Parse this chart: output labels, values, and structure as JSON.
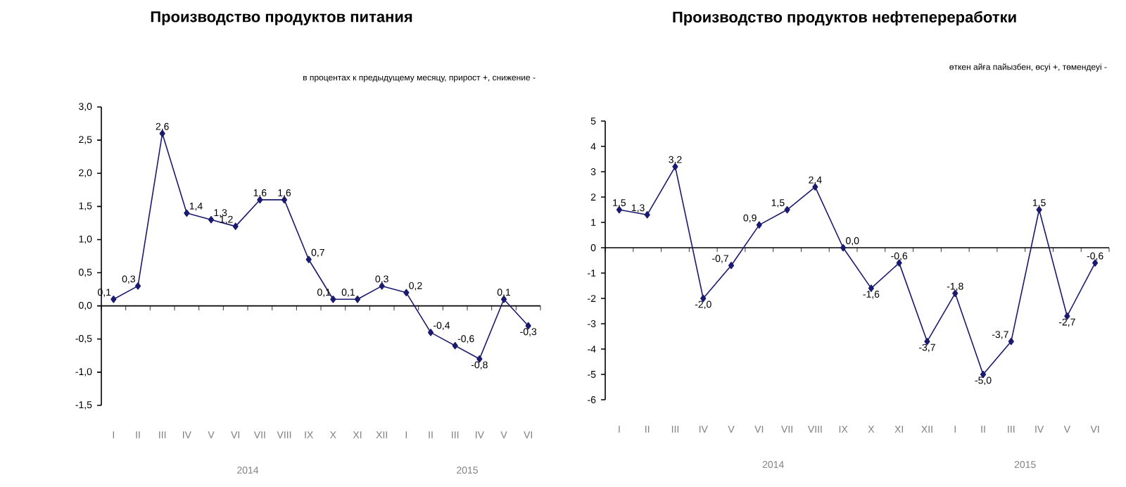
{
  "chart_data": [
    {
      "type": "line",
      "title": "Производство продуктов питания",
      "subtitle": "в процентах к предыдущему месяцу, прирост +, снижение -",
      "categories": [
        "I",
        "II",
        "III",
        "IV",
        "V",
        "VI",
        "VII",
        "VIII",
        "IX",
        "X",
        "XI",
        "XII",
        "I",
        "II",
        "III",
        "IV",
        "V",
        "VI"
      ],
      "series": [
        {
          "color": "#1a1a6e",
          "values": [
            0.1,
            0.3,
            2.6,
            1.4,
            1.3,
            1.2,
            1.6,
            1.6,
            0.7,
            0.1,
            0.1,
            0.3,
            0.2,
            -0.4,
            -0.6,
            -0.8,
            0.1,
            -0.3
          ],
          "value_labels": [
            "0,1",
            "0,3",
            "2,6",
            "1,4",
            "1,3",
            "1,2",
            "1,6",
            "1,6",
            "0,7",
            "0,1",
            "0,1",
            "0,3",
            "0,2",
            "-0,4",
            "-0,6",
            "-0,8",
            "0,1",
            "-0,3"
          ]
        }
      ],
      "ylim": [
        -1.5,
        3.0
      ],
      "yticks": [
        {
          "value": -1.5,
          "label": "-1,5"
        },
        {
          "value": -1.0,
          "label": "-1,0"
        },
        {
          "value": -0.5,
          "label": "-0,5"
        },
        {
          "value": 0.0,
          "label": "0,0"
        },
        {
          "value": 0.5,
          "label": "0,5"
        },
        {
          "value": 1.0,
          "label": "1,0"
        },
        {
          "value": 1.5,
          "label": "1,5"
        },
        {
          "value": 2.0,
          "label": "2,0"
        },
        {
          "value": 2.5,
          "label": "2,5"
        },
        {
          "value": 3.0,
          "label": "3,0"
        }
      ],
      "annotations": [
        "2014",
        "2015"
      ],
      "marker": "diamond",
      "line_style": "solid"
    },
    {
      "type": "line",
      "title": "Производство продуктов нефтепереработки",
      "subtitle": "өткен айға пайызбен, өсуі +, төмендеуі -",
      "categories": [
        "I",
        "II",
        "III",
        "IV",
        "V",
        "VI",
        "VII",
        "VIII",
        "IX",
        "X",
        "XI",
        "XII",
        "I",
        "II",
        "III",
        "IV",
        "V",
        "VI"
      ],
      "series": [
        {
          "color": "#1a1a6e",
          "values": [
            1.5,
            1.3,
            3.2,
            -2.0,
            -0.7,
            0.9,
            1.5,
            2.4,
            0.0,
            -1.6,
            -0.6,
            -3.7,
            -1.8,
            -5.0,
            -3.7,
            1.5,
            -2.7,
            -0.6
          ],
          "value_labels": [
            "1,5",
            "1,3",
            "3,2",
            "-2,0",
            "-0,7",
            "0,9",
            "1,5",
            "2,4",
            "0,0",
            "-1,6",
            "-0,6",
            "-3,7",
            "-1,8",
            "-5,0",
            "-3,7",
            "1,5",
            "-2,7",
            "-0,6"
          ]
        }
      ],
      "ylim": [
        -6,
        5
      ],
      "yticks": [
        -6,
        -5,
        -4,
        -3,
        -2,
        -1,
        0,
        1,
        2,
        3,
        4,
        5
      ],
      "annotations": [
        "2014",
        "2015"
      ],
      "marker": "diamond",
      "line_style": "solid"
    }
  ]
}
